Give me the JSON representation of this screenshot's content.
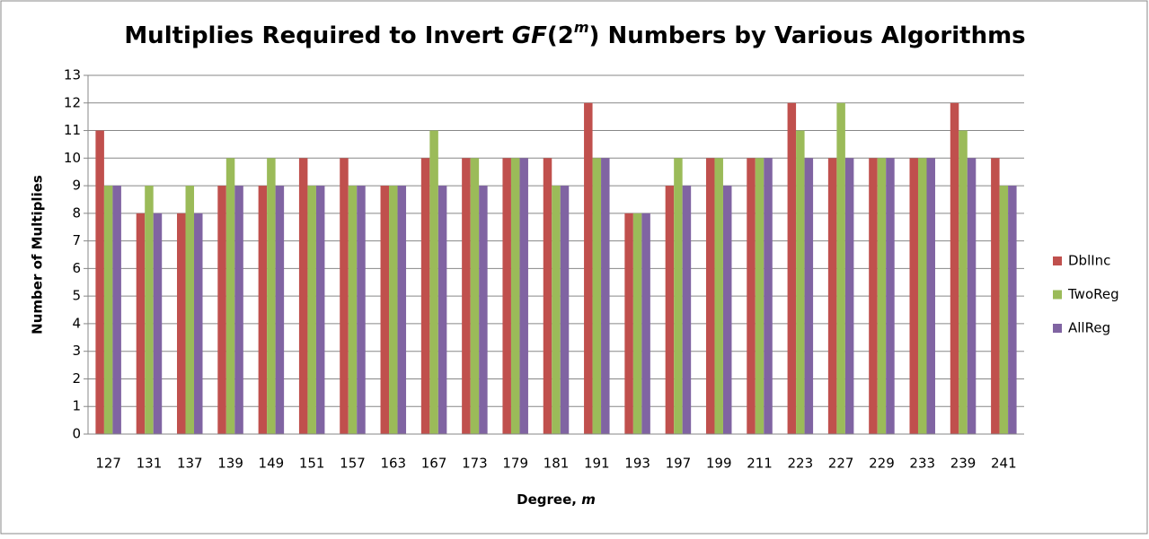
{
  "chart_data": {
    "type": "bar",
    "title_parts": [
      "Multiplies Required to Invert ",
      "GF",
      "(2",
      "m",
      ") Numbers by Various Algorithms"
    ],
    "x_label_parts": [
      "Degree, ",
      "m"
    ],
    "y_label": "Number of Multiplies",
    "categories": [
      "127",
      "131",
      "137",
      "139",
      "149",
      "151",
      "157",
      "163",
      "167",
      "173",
      "179",
      "181",
      "191",
      "193",
      "197",
      "199",
      "211",
      "223",
      "227",
      "229",
      "233",
      "239",
      "241"
    ],
    "series": [
      {
        "name": "DblInc",
        "color": "#c0504d",
        "values": [
          11,
          8,
          8,
          9,
          9,
          10,
          10,
          9,
          10,
          10,
          10,
          10,
          12,
          8,
          9,
          10,
          10,
          12,
          10,
          10,
          10,
          12,
          10
        ]
      },
      {
        "name": "TwoReg",
        "color": "#9bbb59",
        "values": [
          9,
          9,
          9,
          10,
          10,
          9,
          9,
          9,
          11,
          10,
          10,
          9,
          10,
          8,
          10,
          10,
          10,
          11,
          12,
          10,
          10,
          11,
          9
        ]
      },
      {
        "name": "AllReg",
        "color": "#8064a2",
        "values": [
          9,
          8,
          8,
          9,
          9,
          9,
          9,
          9,
          9,
          9,
          10,
          9,
          10,
          8,
          9,
          9,
          10,
          10,
          10,
          10,
          10,
          10,
          9
        ]
      }
    ],
    "ylim": [
      0,
      13
    ],
    "yticks": [
      0,
      1,
      2,
      3,
      4,
      5,
      6,
      7,
      8,
      9,
      10,
      11,
      12,
      13
    ],
    "grid": true,
    "legend": "right"
  }
}
